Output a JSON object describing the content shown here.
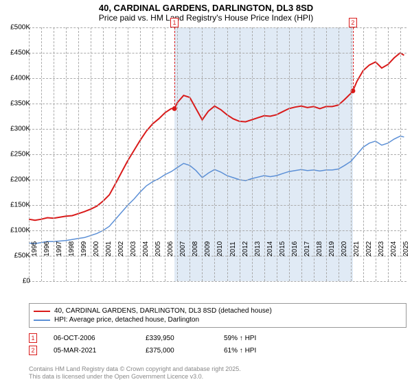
{
  "title": "40, CARDINAL GARDENS, DARLINGTON, DL3 8SD",
  "subtitle": "Price paid vs. HM Land Registry's House Price Index (HPI)",
  "chart": {
    "type": "line",
    "background_color": "#ffffff",
    "shaded_color": "#e0eaf5",
    "grid_color": "#aaaaaa",
    "x_years": [
      "1995",
      "1996",
      "1997",
      "1998",
      "1999",
      "2000",
      "2001",
      "2002",
      "2003",
      "2004",
      "2005",
      "2006",
      "2007",
      "2008",
      "2009",
      "2010",
      "2011",
      "2012",
      "2013",
      "2014",
      "2015",
      "2016",
      "2017",
      "2018",
      "2019",
      "2020",
      "2021",
      "2022",
      "2023",
      "2024",
      "2025"
    ],
    "y_ticks": [
      0,
      50000,
      100000,
      150000,
      200000,
      250000,
      300000,
      350000,
      400000,
      450000,
      500000
    ],
    "y_labels": [
      "£0",
      "£50K",
      "£100K",
      "£150K",
      "£200K",
      "£250K",
      "£300K",
      "£350K",
      "£400K",
      "£450K",
      "£500K"
    ],
    "ylim": [
      0,
      500000
    ],
    "xlim_year": [
      1995,
      2025.5
    ],
    "shaded_from_year": 2006.76,
    "shaded_to_year": 2021.17,
    "label_fontsize": 10,
    "series": [
      {
        "name": "40, CARDINAL GARDENS, DARLINGTON, DL3 8SD (detached house)",
        "color": "#d91a1a",
        "line_width": 2,
        "points": [
          [
            1995,
            122000
          ],
          [
            1995.5,
            120000
          ],
          [
            1996,
            122000
          ],
          [
            1996.5,
            125000
          ],
          [
            1997,
            124000
          ],
          [
            1997.5,
            126000
          ],
          [
            1998,
            128000
          ],
          [
            1998.5,
            129000
          ],
          [
            1999,
            133000
          ],
          [
            1999.5,
            137000
          ],
          [
            2000,
            142000
          ],
          [
            2000.5,
            148000
          ],
          [
            2001,
            158000
          ],
          [
            2001.5,
            170000
          ],
          [
            2002,
            192000
          ],
          [
            2002.5,
            215000
          ],
          [
            2003,
            238000
          ],
          [
            2003.5,
            258000
          ],
          [
            2004,
            278000
          ],
          [
            2004.5,
            296000
          ],
          [
            2005,
            310000
          ],
          [
            2005.5,
            320000
          ],
          [
            2006,
            332000
          ],
          [
            2006.5,
            340000
          ],
          [
            2006.76,
            339950
          ],
          [
            2007,
            352000
          ],
          [
            2007.5,
            366000
          ],
          [
            2008,
            362000
          ],
          [
            2008.5,
            340000
          ],
          [
            2009,
            318000
          ],
          [
            2009.5,
            335000
          ],
          [
            2010,
            345000
          ],
          [
            2010.5,
            338000
          ],
          [
            2011,
            328000
          ],
          [
            2011.5,
            320000
          ],
          [
            2012,
            315000
          ],
          [
            2012.5,
            314000
          ],
          [
            2013,
            318000
          ],
          [
            2013.5,
            322000
          ],
          [
            2014,
            326000
          ],
          [
            2014.5,
            325000
          ],
          [
            2015,
            328000
          ],
          [
            2015.5,
            334000
          ],
          [
            2016,
            340000
          ],
          [
            2016.5,
            343000
          ],
          [
            2017,
            345000
          ],
          [
            2017.5,
            342000
          ],
          [
            2018,
            344000
          ],
          [
            2018.5,
            340000
          ],
          [
            2019,
            344000
          ],
          [
            2019.5,
            344000
          ],
          [
            2020,
            347000
          ],
          [
            2020.5,
            358000
          ],
          [
            2021,
            370000
          ],
          [
            2021.17,
            375000
          ],
          [
            2021.5,
            394000
          ],
          [
            2022,
            415000
          ],
          [
            2022.5,
            426000
          ],
          [
            2023,
            432000
          ],
          [
            2023.5,
            420000
          ],
          [
            2024,
            427000
          ],
          [
            2024.5,
            440000
          ],
          [
            2025,
            450000
          ],
          [
            2025.3,
            445000
          ]
        ]
      },
      {
        "name": "HPI: Average price, detached house, Darlington",
        "color": "#5b8fd6",
        "line_width": 1.5,
        "points": [
          [
            1995,
            75000
          ],
          [
            1995.5,
            74000
          ],
          [
            1996,
            76000
          ],
          [
            1996.5,
            78000
          ],
          [
            1997,
            78000
          ],
          [
            1997.5,
            79000
          ],
          [
            1998,
            80000
          ],
          [
            1998.5,
            82000
          ],
          [
            1999,
            84000
          ],
          [
            1999.5,
            86000
          ],
          [
            2000,
            90000
          ],
          [
            2000.5,
            94000
          ],
          [
            2001,
            100000
          ],
          [
            2001.5,
            108000
          ],
          [
            2002,
            122000
          ],
          [
            2002.5,
            136000
          ],
          [
            2003,
            150000
          ],
          [
            2003.5,
            162000
          ],
          [
            2004,
            176000
          ],
          [
            2004.5,
            188000
          ],
          [
            2005,
            196000
          ],
          [
            2005.5,
            202000
          ],
          [
            2006,
            210000
          ],
          [
            2006.5,
            216000
          ],
          [
            2007,
            224000
          ],
          [
            2007.5,
            232000
          ],
          [
            2008,
            228000
          ],
          [
            2008.5,
            218000
          ],
          [
            2009,
            204000
          ],
          [
            2009.5,
            213000
          ],
          [
            2010,
            220000
          ],
          [
            2010.5,
            215000
          ],
          [
            2011,
            208000
          ],
          [
            2011.5,
            204000
          ],
          [
            2012,
            200000
          ],
          [
            2012.5,
            198000
          ],
          [
            2013,
            202000
          ],
          [
            2013.5,
            205000
          ],
          [
            2014,
            208000
          ],
          [
            2014.5,
            206000
          ],
          [
            2015,
            208000
          ],
          [
            2015.5,
            212000
          ],
          [
            2016,
            216000
          ],
          [
            2016.5,
            218000
          ],
          [
            2017,
            220000
          ],
          [
            2017.5,
            218000
          ],
          [
            2018,
            219000
          ],
          [
            2018.5,
            217000
          ],
          [
            2019,
            219000
          ],
          [
            2019.5,
            219000
          ],
          [
            2020,
            221000
          ],
          [
            2020.5,
            228000
          ],
          [
            2021,
            236000
          ],
          [
            2021.5,
            250000
          ],
          [
            2022,
            264000
          ],
          [
            2022.5,
            272000
          ],
          [
            2023,
            276000
          ],
          [
            2023.5,
            268000
          ],
          [
            2024,
            272000
          ],
          [
            2024.5,
            280000
          ],
          [
            2025,
            286000
          ],
          [
            2025.3,
            284000
          ]
        ]
      }
    ],
    "sale_markers": [
      {
        "n": "1",
        "year": 2006.76,
        "value": 339950,
        "color": "#d91a1a"
      },
      {
        "n": "2",
        "year": 2021.17,
        "value": 375000,
        "color": "#d91a1a"
      }
    ]
  },
  "legend": {
    "items": [
      {
        "color": "#d91a1a",
        "label": "40, CARDINAL GARDENS, DARLINGTON, DL3 8SD (detached house)"
      },
      {
        "color": "#5b8fd6",
        "label": "HPI: Average price, detached house, Darlington"
      }
    ]
  },
  "sales": [
    {
      "n": "1",
      "color": "#d91a1a",
      "date": "06-OCT-2006",
      "price": "£339,950",
      "hpi": "59% ↑ HPI"
    },
    {
      "n": "2",
      "color": "#d91a1a",
      "date": "05-MAR-2021",
      "price": "£375,000",
      "hpi": "61% ↑ HPI"
    }
  ],
  "footer_l1": "Contains HM Land Registry data © Crown copyright and database right 2025.",
  "footer_l2": "This data is licensed under the Open Government Licence v3.0."
}
